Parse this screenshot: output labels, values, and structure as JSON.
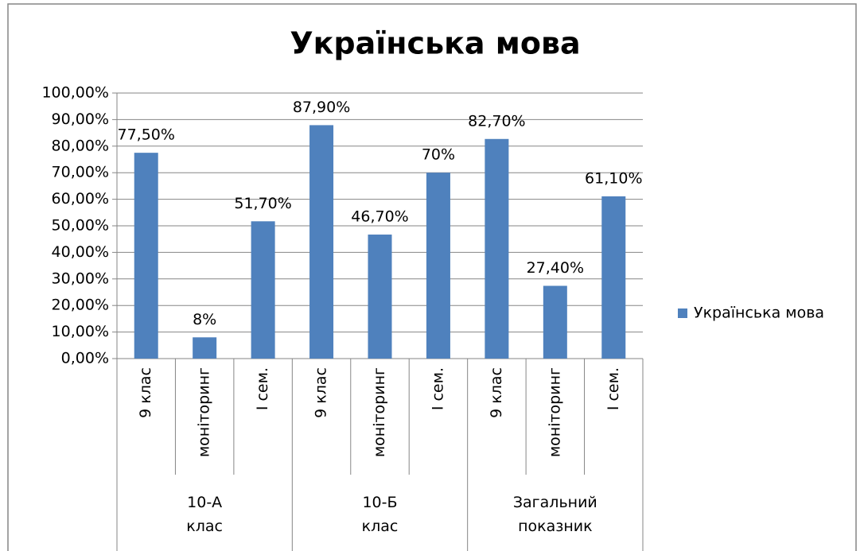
{
  "chart_data": {
    "type": "bar",
    "title": "Українська мова",
    "categories": [
      "9 клас",
      "моніторинг",
      "І сем.",
      "9 клас",
      "моніторинг",
      "І сем.",
      "9 клас",
      "моніторинг",
      "І сем."
    ],
    "group_labels": [
      "10-А клас",
      "10-Б клас",
      "Загальний показник"
    ],
    "series": [
      {
        "name": "Українська мова",
        "color": "#4f81bd",
        "values": [
          77.5,
          8,
          51.7,
          87.9,
          46.7,
          70,
          82.7,
          27.4,
          61.1
        ],
        "value_labels": [
          "77,50%",
          "8%",
          "51,70%",
          "87,90%",
          "46,70%",
          "70%",
          "82,70%",
          "27,40%",
          "61,10%"
        ]
      }
    ],
    "ylim": [
      0,
      100
    ],
    "yticks": [
      {
        "value": 0,
        "label": "0,00%"
      },
      {
        "value": 10,
        "label": "10,00%"
      },
      {
        "value": 20,
        "label": "20,00%"
      },
      {
        "value": 30,
        "label": "30,00%"
      },
      {
        "value": 40,
        "label": "40,00%"
      },
      {
        "value": 50,
        "label": "50,00%"
      },
      {
        "value": 60,
        "label": "60,00%"
      },
      {
        "value": 70,
        "label": "70,00%"
      },
      {
        "value": 80,
        "label": "80,00%"
      },
      {
        "value": 90,
        "label": "90,00%"
      },
      {
        "value": 100,
        "label": "100,00%"
      }
    ],
    "grid": true,
    "legend": "right"
  }
}
